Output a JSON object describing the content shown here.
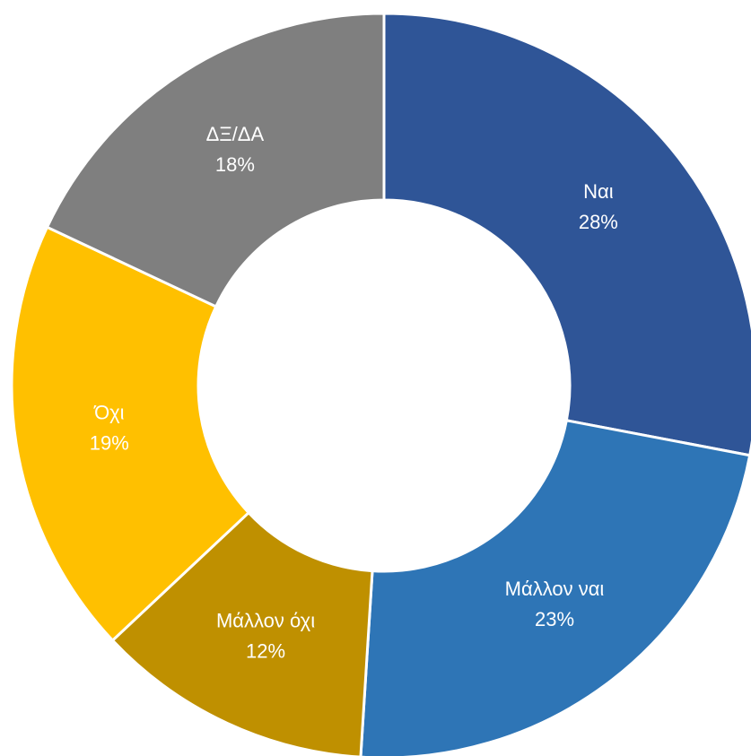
{
  "chart_data": {
    "type": "donut",
    "categories": [
      "Ναι",
      "Μάλλον ναι",
      "Μάλλον όχι",
      "Όχι",
      "ΔΞ/ΔΑ"
    ],
    "values": [
      28,
      23,
      12,
      19,
      18
    ],
    "value_labels": [
      "28%",
      "23%",
      "12%",
      "19%",
      "18%"
    ],
    "colors": [
      "#2f5597",
      "#2e75b6",
      "#bf9000",
      "#ffc000",
      "#7f7f7f"
    ]
  }
}
